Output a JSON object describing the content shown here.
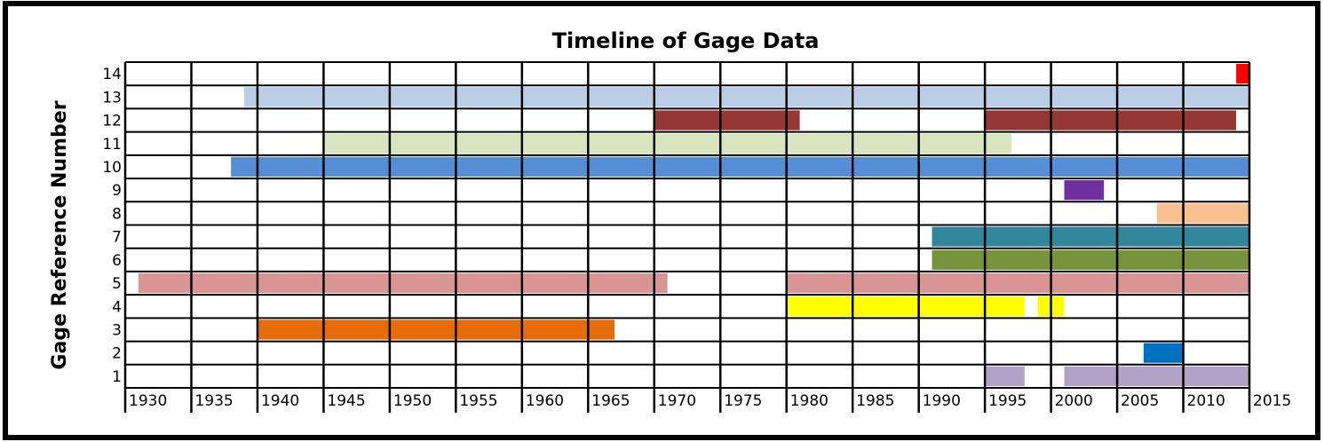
{
  "chart_data": {
    "type": "timeline",
    "title": "Timeline of Gage Data",
    "y_label": "Gage Reference Number",
    "xlim": [
      1930,
      2015
    ],
    "xticks": [
      1930,
      1935,
      1940,
      1945,
      1950,
      1955,
      1960,
      1965,
      1970,
      1975,
      1980,
      1985,
      1990,
      1995,
      2000,
      2005,
      2010,
      2015
    ],
    "grid": true,
    "rows": [
      {
        "name": "1",
        "color": "#b3a2c8",
        "segments": [
          [
            1995,
            1998
          ],
          [
            2001,
            2015
          ]
        ]
      },
      {
        "name": "2",
        "color": "#0070c0",
        "segments": [
          [
            2007,
            2010
          ]
        ]
      },
      {
        "name": "3",
        "color": "#e46c0a",
        "segments": [
          [
            1940,
            1967
          ]
        ]
      },
      {
        "name": "4",
        "color": "#ffff00",
        "segments": [
          [
            1980,
            1998
          ],
          [
            1999,
            2001
          ]
        ]
      },
      {
        "name": "5",
        "color": "#d99594",
        "segments": [
          [
            1931,
            1971
          ],
          [
            1980,
            2015
          ]
        ]
      },
      {
        "name": "6",
        "color": "#77933c",
        "segments": [
          [
            1991,
            2015
          ]
        ]
      },
      {
        "name": "7",
        "color": "#31869b",
        "segments": [
          [
            1991,
            2015
          ]
        ]
      },
      {
        "name": "8",
        "color": "#fac090",
        "segments": [
          [
            2008,
            2015
          ]
        ]
      },
      {
        "name": "9",
        "color": "#7030a0",
        "segments": [
          [
            2001,
            2004
          ]
        ]
      },
      {
        "name": "10",
        "color": "#558ed5",
        "segments": [
          [
            1938,
            2015
          ]
        ]
      },
      {
        "name": "11",
        "color": "#d7e4bd",
        "segments": [
          [
            1945,
            1997
          ]
        ]
      },
      {
        "name": "12",
        "color": "#953735",
        "segments": [
          [
            1970,
            1981
          ],
          [
            1995,
            2014
          ]
        ]
      },
      {
        "name": "13",
        "color": "#b9cde5",
        "segments": [
          [
            1939,
            2015
          ]
        ]
      },
      {
        "name": "14",
        "color": "#ff0000",
        "segments": [
          [
            2014,
            2015
          ]
        ]
      }
    ]
  }
}
